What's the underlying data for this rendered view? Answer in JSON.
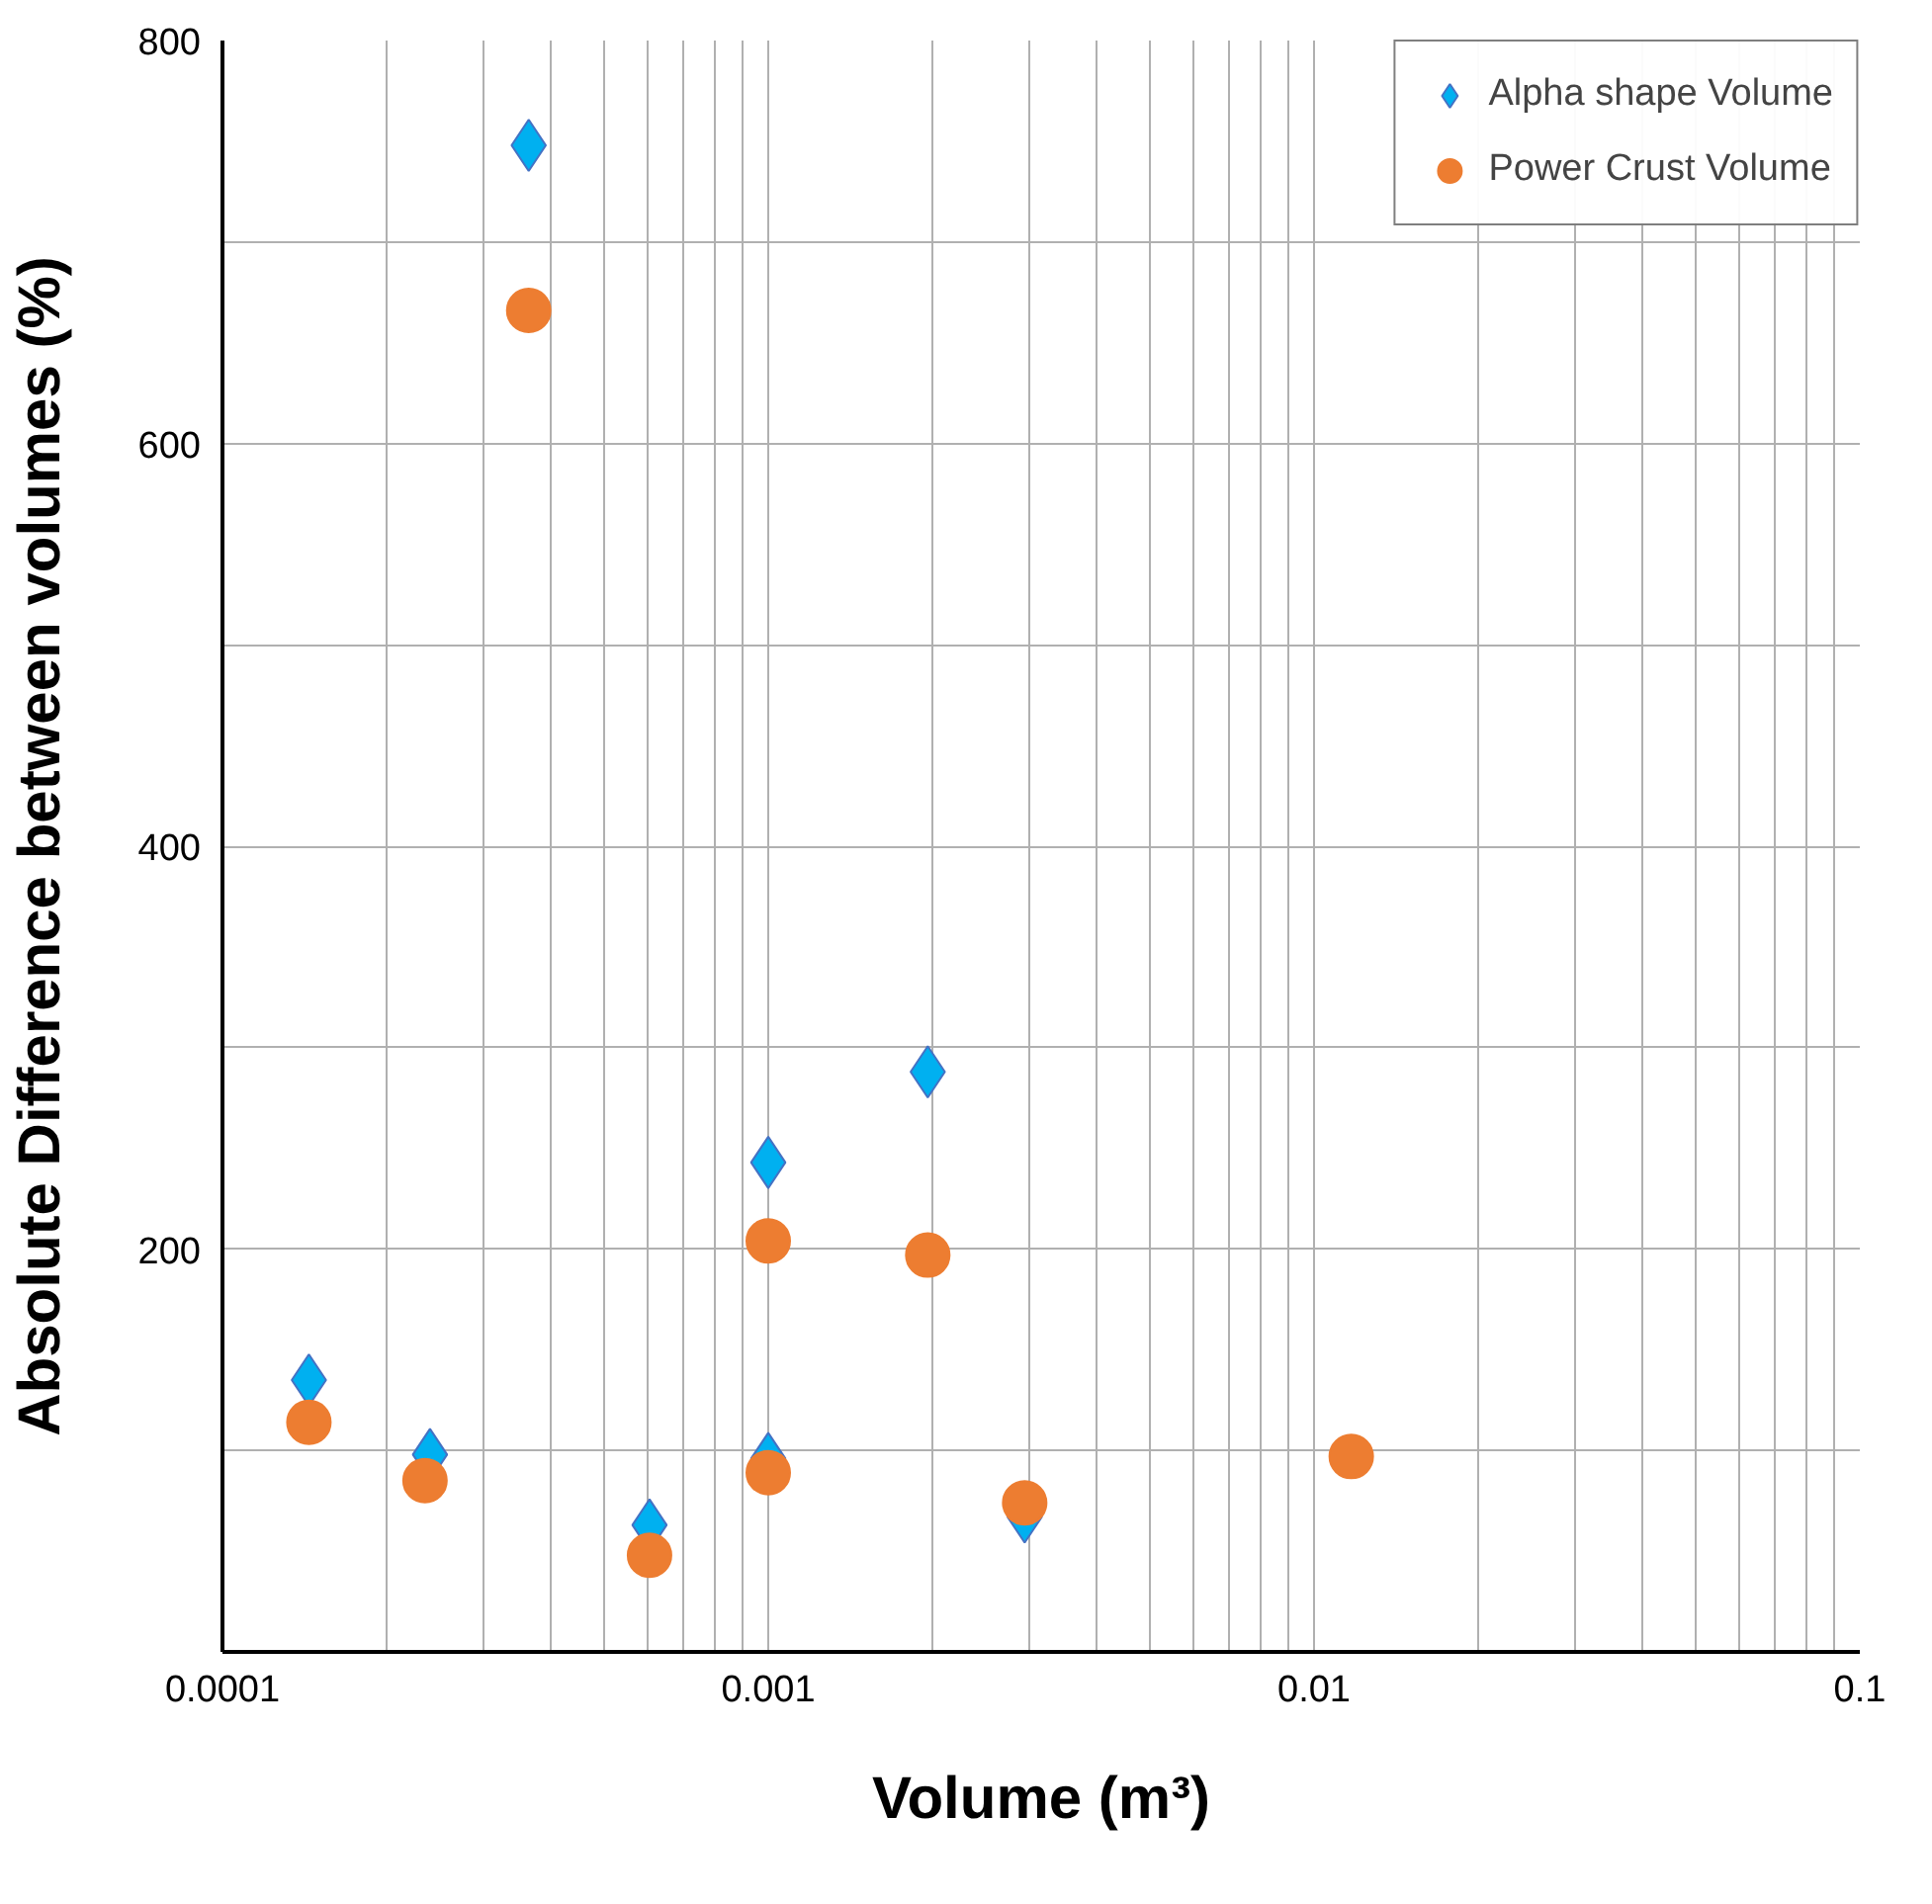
{
  "chart_data": {
    "type": "scatter",
    "xlabel": "Volume (m³)",
    "ylabel": "Absolute Difference between volumes (%)",
    "log": "x",
    "xlim": [
      0.0001,
      0.1
    ],
    "ylim": [
      0,
      800
    ],
    "xticks": [
      0.0001,
      {
        "value": 0.0002,
        "label": null
      },
      {
        "value": 0.0003,
        "label": null
      },
      {
        "value": 0.0004,
        "label": null
      },
      {
        "value": 0.0005,
        "label": null
      },
      {
        "value": 0.0006,
        "label": null
      },
      {
        "value": 0.0007,
        "label": null
      },
      {
        "value": 0.0008,
        "label": null
      },
      {
        "value": 0.0009,
        "label": null
      },
      0.001,
      {
        "value": 0.002,
        "label": null
      },
      {
        "value": 0.003,
        "label": null
      },
      {
        "value": 0.004,
        "label": null
      },
      {
        "value": 0.005,
        "label": null
      },
      {
        "value": 0.006,
        "label": null
      },
      {
        "value": 0.007,
        "label": null
      },
      {
        "value": 0.008,
        "label": null
      },
      {
        "value": 0.009,
        "label": null
      },
      0.01,
      {
        "value": 0.02,
        "label": null
      },
      {
        "value": 0.03,
        "label": null
      },
      {
        "value": 0.04,
        "label": null
      },
      {
        "value": 0.05,
        "label": null
      },
      {
        "value": 0.06,
        "label": null
      },
      {
        "value": 0.07,
        "label": null
      },
      {
        "value": 0.08,
        "label": null
      },
      {
        "value": 0.09,
        "label": null
      },
      0.1
    ],
    "yticks": [
      {
        "value": 100,
        "label": null
      },
      200,
      {
        "value": 300,
        "label": null
      },
      400,
      {
        "value": 500,
        "label": null
      },
      600,
      {
        "value": 700,
        "label": null
      },
      800
    ],
    "grid": true,
    "legend": "top right",
    "series": [
      {
        "name": "Alpha shape Volume",
        "color": "#00b0f0",
        "marker": "diamond",
        "x": [
          0.000144,
          0.00024,
          0.000364,
          0.000606,
          0.001,
          0.001,
          0.00196,
          0.00295
        ],
        "values": [
          135,
          98,
          748,
          63,
          243,
          96,
          288,
          67
        ]
      },
      {
        "name": "Power Crust Volume",
        "color": "#ed7d31",
        "marker": "circle",
        "x": [
          0.000144,
          0.000235,
          0.000364,
          0.000606,
          0.001,
          0.001,
          0.00196,
          0.00295,
          0.0117
        ],
        "values": [
          114,
          85,
          666,
          48,
          204,
          89,
          197,
          74,
          97
        ]
      }
    ]
  }
}
